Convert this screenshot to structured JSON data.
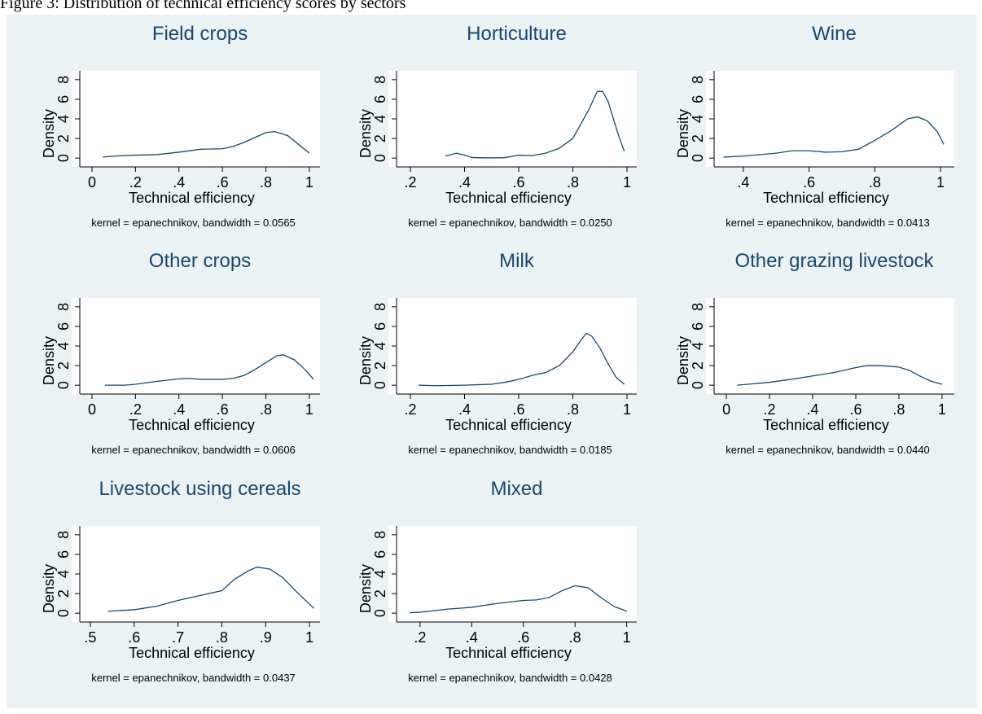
{
  "caption": "Figure 3: Distribution of technical efficiency scores by sectors",
  "chart_data": [
    {
      "type": "line",
      "title": "Field crops",
      "xlabel": "Technical efficiency",
      "ylabel": "Density",
      "note": "kernel = epanechnikov, bandwidth = 0.0565",
      "color": "#1a476f",
      "x": [
        0.05,
        0.1,
        0.2,
        0.3,
        0.4,
        0.5,
        0.6,
        0.65,
        0.7,
        0.75,
        0.8,
        0.84,
        0.9,
        0.95,
        1.0
      ],
      "values": [
        0.1,
        0.2,
        0.3,
        0.35,
        0.6,
        0.9,
        0.95,
        1.2,
        1.6,
        2.1,
        2.6,
        2.7,
        2.3,
        1.4,
        0.5
      ],
      "xlim": [
        -0.056,
        1.049
      ],
      "ylim": [
        -0.9,
        8.9
      ],
      "xticks": [
        0,
        {
          "value": 0.2,
          "label": ".2"
        },
        {
          "value": 0.4,
          "label": ".4"
        },
        {
          "value": 0.6,
          "label": ".6"
        },
        {
          "value": 0.8,
          "label": ".8"
        },
        1
      ],
      "yticks": [
        0,
        2,
        4,
        6,
        8
      ]
    },
    {
      "type": "line",
      "title": "Horticulture",
      "xlabel": "Technical efficiency",
      "ylabel": "Density",
      "note": "kernel = epanechnikov, bandwidth = 0.0250",
      "color": "#1a476f",
      "x": [
        0.33,
        0.37,
        0.4,
        0.43,
        0.5,
        0.55,
        0.6,
        0.65,
        0.7,
        0.75,
        0.8,
        0.83,
        0.86,
        0.89,
        0.91,
        0.93,
        0.95,
        0.97,
        0.99
      ],
      "values": [
        0.2,
        0.5,
        0.3,
        0.05,
        0.02,
        0.05,
        0.3,
        0.25,
        0.5,
        1.0,
        2.0,
        3.5,
        5.0,
        6.8,
        6.8,
        5.8,
        4.0,
        2.2,
        0.7
      ],
      "xlim": [
        0.149,
        1.036
      ],
      "ylim": [
        -0.9,
        8.9
      ],
      "xticks": [
        {
          "value": 0.2,
          "label": ".2"
        },
        {
          "value": 0.4,
          "label": ".4"
        },
        {
          "value": 0.6,
          "label": ".6"
        },
        {
          "value": 0.8,
          "label": ".8"
        },
        1
      ],
      "yticks": [
        0,
        2,
        4,
        6,
        8
      ]
    },
    {
      "type": "line",
      "title": "Wine",
      "xlabel": "Technical efficiency",
      "ylabel": "Density",
      "note": "kernel = epanechnikov, bandwidth = 0.0413",
      "color": "#1a476f",
      "x": [
        0.34,
        0.4,
        0.5,
        0.55,
        0.6,
        0.65,
        0.7,
        0.75,
        0.8,
        0.85,
        0.9,
        0.93,
        0.96,
        0.99,
        1.01
      ],
      "values": [
        0.1,
        0.2,
        0.5,
        0.75,
        0.75,
        0.6,
        0.65,
        0.9,
        1.8,
        2.8,
        4.0,
        4.2,
        3.8,
        2.7,
        1.4
      ],
      "xlim": [
        0.311,
        1.042
      ],
      "ylim": [
        -0.9,
        8.9
      ],
      "xticks": [
        {
          "value": 0.4,
          "label": ".4"
        },
        {
          "value": 0.6,
          "label": ".6"
        },
        {
          "value": 0.8,
          "label": ".8"
        },
        1
      ],
      "yticks": [
        0,
        2,
        4,
        6,
        8
      ]
    },
    {
      "type": "line",
      "title": "Other crops",
      "xlabel": "Technical efficiency",
      "ylabel": "Density",
      "note": "kernel = epanechnikov, bandwidth = 0.0606",
      "color": "#1a476f",
      "x": [
        0.06,
        0.15,
        0.2,
        0.3,
        0.4,
        0.45,
        0.5,
        0.6,
        0.65,
        0.7,
        0.75,
        0.8,
        0.85,
        0.88,
        0.93,
        0.98,
        1.02
      ],
      "values": [
        0,
        0,
        0.1,
        0.4,
        0.65,
        0.7,
        0.6,
        0.6,
        0.7,
        1.0,
        1.6,
        2.3,
        3.0,
        3.1,
        2.6,
        1.6,
        0.6
      ],
      "xlim": [
        -0.056,
        1.049
      ],
      "ylim": [
        -0.9,
        8.9
      ],
      "xticks": [
        0,
        {
          "value": 0.2,
          "label": ".2"
        },
        {
          "value": 0.4,
          "label": ".4"
        },
        {
          "value": 0.6,
          "label": ".6"
        },
        {
          "value": 0.8,
          "label": ".8"
        },
        1
      ],
      "yticks": [
        0,
        2,
        4,
        6,
        8
      ]
    },
    {
      "type": "line",
      "title": "Milk",
      "xlabel": "Technical efficiency",
      "ylabel": "Density",
      "note": "kernel = epanechnikov, bandwidth = 0.0185",
      "color": "#1a476f",
      "x": [
        0.23,
        0.3,
        0.4,
        0.5,
        0.55,
        0.6,
        0.65,
        0.7,
        0.75,
        0.8,
        0.83,
        0.85,
        0.87,
        0.9,
        0.93,
        0.96,
        0.99
      ],
      "values": [
        0,
        -0.05,
        0,
        0.1,
        0.3,
        0.6,
        1.0,
        1.3,
        2.0,
        3.4,
        4.6,
        5.3,
        5.0,
        3.8,
        2.2,
        0.8,
        0.1
      ],
      "xlim": [
        0.149,
        1.036
      ],
      "ylim": [
        -0.9,
        8.9
      ],
      "xticks": [
        {
          "value": 0.2,
          "label": ".2"
        },
        {
          "value": 0.4,
          "label": ".4"
        },
        {
          "value": 0.6,
          "label": ".6"
        },
        {
          "value": 0.8,
          "label": ".8"
        },
        1
      ],
      "yticks": [
        0,
        2,
        4,
        6,
        8
      ]
    },
    {
      "type": "line",
      "title": "Other grazing livestock",
      "xlabel": "Technical efficiency",
      "ylabel": "Density",
      "note": "kernel = epanechnikov, bandwidth = 0.0440",
      "color": "#1a476f",
      "x": [
        0.05,
        0.1,
        0.2,
        0.3,
        0.4,
        0.5,
        0.6,
        0.65,
        0.7,
        0.75,
        0.8,
        0.85,
        0.9,
        0.95,
        1.0
      ],
      "values": [
        0,
        0.1,
        0.3,
        0.6,
        0.95,
        1.3,
        1.8,
        2.0,
        2.0,
        1.95,
        1.85,
        1.5,
        0.9,
        0.4,
        0.1
      ],
      "xlim": [
        -0.057,
        1.057
      ],
      "ylim": [
        -0.9,
        8.9
      ],
      "xticks": [
        0,
        {
          "value": 0.2,
          "label": ".2"
        },
        {
          "value": 0.4,
          "label": ".4"
        },
        {
          "value": 0.6,
          "label": ".6"
        },
        {
          "value": 0.8,
          "label": ".8"
        },
        1
      ],
      "yticks": [
        0,
        2,
        4,
        6,
        8
      ]
    },
    {
      "type": "line",
      "title": "Livestock using cereals",
      "xlabel": "Technical efficiency",
      "ylabel": "Density",
      "note": "kernel = epanechnikov, bandwidth = 0.0437",
      "color": "#1a476f",
      "x": [
        0.54,
        0.6,
        0.65,
        0.7,
        0.75,
        0.8,
        0.83,
        0.86,
        0.88,
        0.91,
        0.94,
        0.97,
        1.01
      ],
      "values": [
        0.2,
        0.35,
        0.7,
        1.3,
        1.8,
        2.3,
        3.5,
        4.3,
        4.7,
        4.5,
        3.6,
        2.2,
        0.5
      ],
      "xlim": [
        0.476,
        1.024
      ],
      "ylim": [
        -0.9,
        8.9
      ],
      "xticks": [
        {
          "value": 0.5,
          "label": ".5"
        },
        {
          "value": 0.6,
          "label": ".6"
        },
        {
          "value": 0.7,
          "label": ".7"
        },
        {
          "value": 0.8,
          "label": ".8"
        },
        {
          "value": 0.9,
          "label": ".9"
        },
        1
      ],
      "yticks": [
        0,
        2,
        4,
        6,
        8
      ]
    },
    {
      "type": "line",
      "title": "Mixed",
      "xlabel": "Technical efficiency",
      "ylabel": "Density",
      "note": "kernel = epanechnikov, bandwidth = 0.0428",
      "color": "#1a476f",
      "x": [
        0.16,
        0.2,
        0.3,
        0.4,
        0.5,
        0.6,
        0.65,
        0.7,
        0.75,
        0.8,
        0.85,
        0.9,
        0.95,
        1.0
      ],
      "values": [
        0.05,
        0.1,
        0.4,
        0.6,
        1.0,
        1.3,
        1.35,
        1.6,
        2.3,
        2.8,
        2.6,
        1.6,
        0.7,
        0.2
      ],
      "xlim": [
        0.109,
        1.039
      ],
      "ylim": [
        -0.9,
        8.9
      ],
      "xticks": [
        {
          "value": 0.2,
          "label": ".2"
        },
        {
          "value": 0.4,
          "label": ".4"
        },
        {
          "value": 0.6,
          "label": ".6"
        },
        {
          "value": 0.8,
          "label": ".8"
        },
        1
      ],
      "yticks": [
        0,
        2,
        4,
        6,
        8
      ]
    }
  ]
}
